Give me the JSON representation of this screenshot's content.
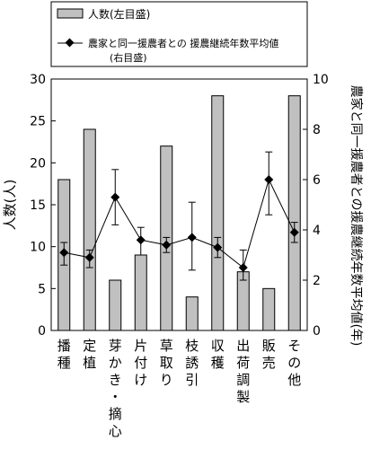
{
  "chart_data": {
    "type": "bar",
    "categories": [
      "播種",
      "定植",
      "芽かき・摘心",
      "片付け",
      "草取り",
      "枝誘引",
      "収穫",
      "出荷調製",
      "販売",
      "その他"
    ],
    "bar_series": {
      "name": "人数(左目盛)",
      "axis": "left",
      "values": [
        18,
        24,
        6,
        9,
        22,
        4,
        28,
        7,
        5,
        28
      ]
    },
    "line_series": {
      "name": "農家と同一援農者との 援農継続年数平均値\n(右目盛)",
      "name_line1": "農家と同一援農者との 援農継続年数平均値",
      "name_line2": "(右目盛)",
      "axis": "right",
      "values": [
        3.1,
        2.9,
        5.3,
        3.6,
        3.4,
        3.7,
        3.3,
        2.5,
        6.0,
        3.9
      ],
      "error_low": [
        2.6,
        2.5,
        4.2,
        3.0,
        3.1,
        2.4,
        2.9,
        2.0,
        4.6,
        3.5
      ],
      "error_high": [
        3.5,
        3.2,
        6.4,
        4.1,
        3.7,
        5.1,
        3.7,
        3.2,
        7.1,
        4.3
      ]
    },
    "ylabel_left": "人数(人)",
    "ylabel_right": "農家と同一援農者との援農継続年数平均値(年)",
    "ylim_left": [
      0,
      30
    ],
    "ylim_right": [
      0,
      10
    ],
    "yticks_left": [
      "0",
      "5",
      "10",
      "15",
      "20",
      "25",
      "30"
    ],
    "yticks_right": [
      "0",
      "2",
      "4",
      "6",
      "8",
      "10"
    ],
    "legend_position": "top",
    "grid": false,
    "colors": {
      "bar_fill": "#c0c0c0",
      "bar_stroke": "#000000",
      "line": "#000000"
    }
  }
}
